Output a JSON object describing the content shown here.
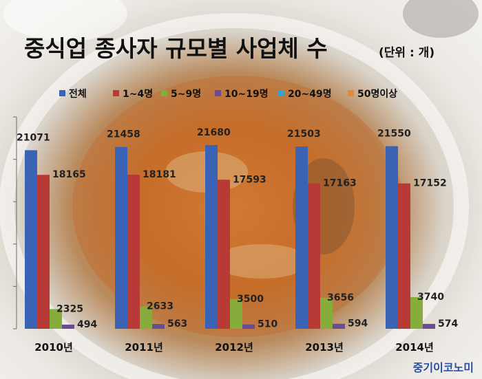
{
  "chart_data": {
    "type": "bar",
    "title": "중식업 종사자 규모별 사업체 수",
    "unit": "(단위 : 개)",
    "categories": [
      "2010년",
      "2011년",
      "2012년",
      "2013년",
      "2014년"
    ],
    "series": [
      {
        "name": "전체",
        "color": "#3a63b5",
        "values": [
          21071,
          21458,
          21680,
          21503,
          21550
        ]
      },
      {
        "name": "1~4명",
        "color": "#b83a36",
        "values": [
          18165,
          18181,
          17593,
          17163,
          17152
        ]
      },
      {
        "name": "5~9명",
        "color": "#86ad3b",
        "values": [
          2325,
          2633,
          3500,
          3656,
          3740
        ]
      },
      {
        "name": "10~19명",
        "color": "#6a4c93",
        "values": [
          494,
          563,
          510,
          594,
          574
        ]
      },
      {
        "name": "20~49명",
        "color": "#3aa1c8",
        "values": [
          null,
          null,
          null,
          null,
          null
        ]
      },
      {
        "name": "50명이상",
        "color": "#e58a2e",
        "values": [
          null,
          null,
          null,
          null,
          null
        ]
      }
    ],
    "ylim": [
      0,
      25000
    ],
    "grid": false,
    "legend": "top"
  },
  "brand": "중기이코노미"
}
